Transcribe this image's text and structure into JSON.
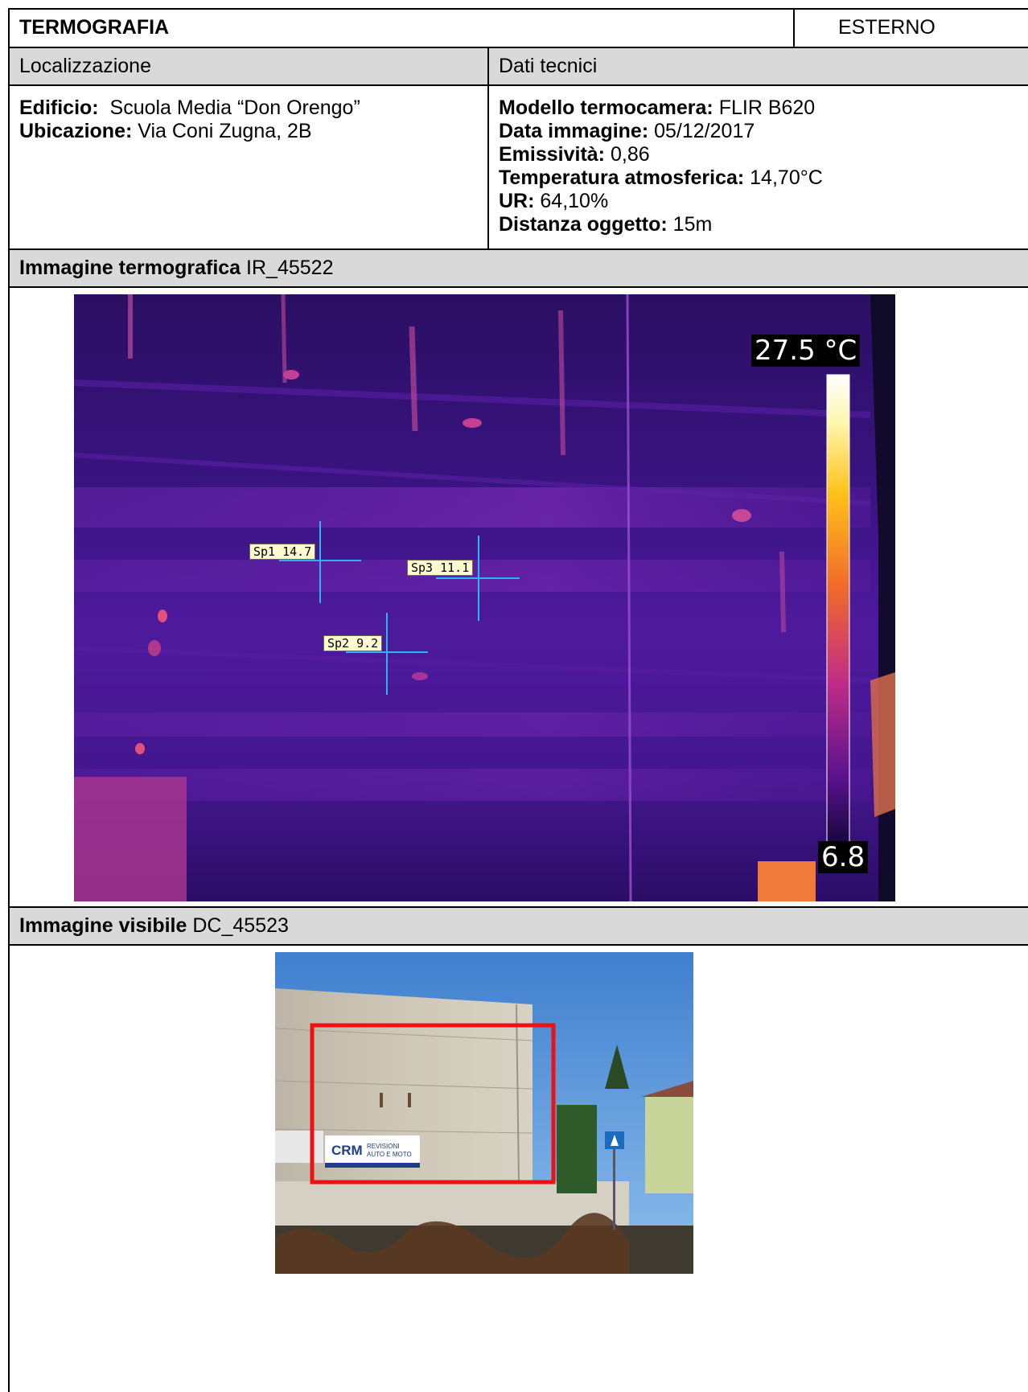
{
  "header": {
    "title": "TERMOGRAFIA",
    "tag": "ESTERNO"
  },
  "sections": {
    "location": "Localizzazione",
    "tech": "Dati tecnici"
  },
  "location": {
    "building_label": "Edificio:",
    "building_value": "Scuola Media “Don Orengo”",
    "address_label": "Ubicazione:",
    "address_value": "Via Coni Zugna, 2B"
  },
  "tech": {
    "model_label": "Modello termocamera:",
    "model_value": "FLIR B620",
    "date_label": "Data immagine:",
    "date_value": "05/12/2017",
    "emis_label": "Emissività:",
    "emis_value": "0,86",
    "temp_label": "Temperatura atmosferica:",
    "temp_value": "14,70°C",
    "rh_label": "UR:",
    "rh_value": "64,10%",
    "dist_label": "Distanza oggetto:",
    "dist_value": "15m"
  },
  "thermal": {
    "label": "Immagine termografica",
    "id": "IR_45522",
    "scale_max": "27.5 °C",
    "scale_min": "6.8",
    "spots": [
      {
        "name": "Sp1",
        "value": "14.7",
        "text": "Sp1 14.7"
      },
      {
        "name": "Sp2",
        "value": "9.2",
        "text": "Sp2 9.2"
      },
      {
        "name": "Sp3",
        "value": "11.1",
        "text": "Sp3 11.1"
      }
    ]
  },
  "visible": {
    "label": "Immagine visibile",
    "id": "DC_45523",
    "sign_brand": "CRM",
    "sign_line1": "REVISIONI",
    "sign_line2": "AUTO E MOTO"
  }
}
